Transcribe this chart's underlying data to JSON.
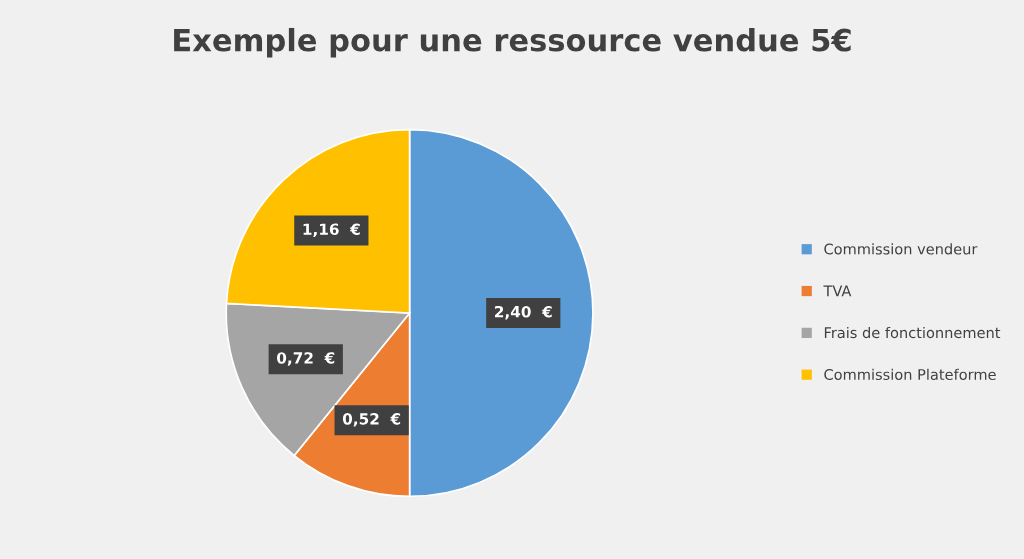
{
  "chart_data": {
    "type": "pie",
    "title": "Exemple pour une ressource vendue 5€",
    "categories": [
      "Commission vendeur",
      "TVA",
      "Frais de fonctionnement",
      "Commission Plateforme"
    ],
    "values": [
      2.4,
      0.52,
      0.72,
      1.16
    ],
    "colors": [
      "#5b9bd5",
      "#ed7d31",
      "#a5a5a5",
      "#ffc000"
    ],
    "value_labels": [
      "2,40  €",
      "0,52  €",
      "0,72  €",
      "1,16  €"
    ],
    "legend": "right"
  }
}
